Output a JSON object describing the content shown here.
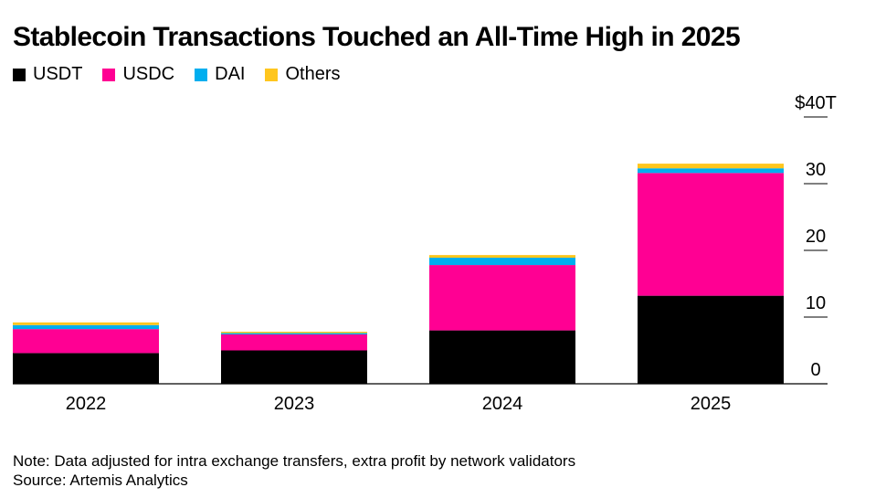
{
  "chart_data": {
    "type": "bar",
    "stacked": true,
    "title": "Stablecoin Transactions Touched an All-Time High in 2025",
    "categories": [
      "2022",
      "2023",
      "2024",
      "2025"
    ],
    "series": [
      {
        "name": "USDT",
        "color": "#000000",
        "values": [
          4.6,
          5.0,
          8.0,
          13.2
        ]
      },
      {
        "name": "USDC",
        "color": "#ff0093",
        "values": [
          3.6,
          2.4,
          9.8,
          18.4
        ]
      },
      {
        "name": "DAI",
        "color": "#00aeef",
        "values": [
          0.6,
          0.2,
          1.1,
          0.7
        ]
      },
      {
        "name": "Others",
        "color": "#ffc61e",
        "values": [
          0.4,
          0.2,
          0.4,
          0.7
        ]
      }
    ],
    "ylim": [
      0,
      40
    ],
    "yticks": [
      0,
      10,
      20,
      30,
      40
    ],
    "ytick_labels": [
      "0",
      "10",
      "20",
      "30",
      "$40T"
    ],
    "legend_position": "top-left",
    "axis_position": "right"
  },
  "footer": {
    "note": "Note: Data adjusted for intra exchange transfers, extra profit by network validators",
    "source": "Source: Artemis Analytics"
  }
}
